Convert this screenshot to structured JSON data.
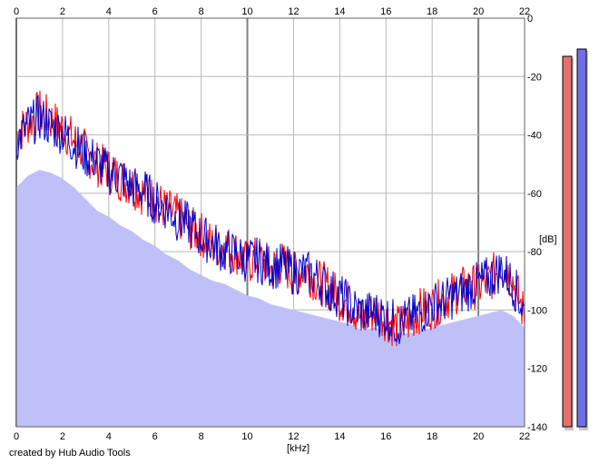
{
  "credit": "created by Hub Audio Tools",
  "meters": [
    {
      "name": "left channel level",
      "color": "#e86f6f"
    },
    {
      "name": "right channel level",
      "color": "#6f6fe8"
    }
  ],
  "chart_data": {
    "type": "line",
    "title": "",
    "xlabel": "[kHz]",
    "ylabel": "[dB]",
    "xlim": [
      0,
      22
    ],
    "ylim": [
      -140,
      0
    ],
    "x_ticks": [
      0,
      2,
      4,
      6,
      8,
      10,
      12,
      14,
      16,
      18,
      20,
      22
    ],
    "y_ticks": [
      0,
      -20,
      -40,
      -60,
      -80,
      -100,
      -120,
      -140
    ],
    "y_tick_labels": [
      "0",
      "-20",
      "-40",
      "-60",
      "-80",
      "-100",
      "-120",
      "-140"
    ],
    "grid": true,
    "legend": "none",
    "x": [
      0,
      0.5,
      1,
      1.5,
      2,
      2.5,
      3,
      3.5,
      4,
      4.5,
      5,
      5.5,
      6,
      6.5,
      7,
      7.5,
      8,
      8.5,
      9,
      9.5,
      10,
      10.5,
      11,
      11.5,
      12,
      12.5,
      13,
      13.5,
      14,
      14.5,
      15,
      15.5,
      16,
      16.5,
      17,
      17.5,
      18,
      18.5,
      19,
      19.5,
      20,
      20.5,
      21,
      21.5,
      22
    ],
    "series": [
      {
        "color": "#ff0000",
        "values": [
          -40,
          -36,
          -32,
          -35,
          -38,
          -42,
          -46,
          -50,
          -52,
          -55,
          -57,
          -60,
          -62,
          -66,
          -68,
          -72,
          -74,
          -78,
          -78,
          -80,
          -84,
          -82,
          -86,
          -84,
          -88,
          -86,
          -90,
          -92,
          -96,
          -98,
          -104,
          -100,
          -103,
          -106,
          -104,
          -100,
          -99,
          -96,
          -94,
          -92,
          -92,
          -90,
          -84,
          -90,
          -102
        ]
      },
      {
        "color": "#0000cc",
        "values": [
          -42,
          -37,
          -34,
          -37,
          -39,
          -43,
          -47,
          -49,
          -53,
          -54,
          -58,
          -59,
          -63,
          -65,
          -69,
          -71,
          -75,
          -77,
          -80,
          -81,
          -83,
          -83,
          -85,
          -85,
          -87,
          -87,
          -89,
          -93,
          -95,
          -99,
          -101,
          -101,
          -102,
          -105,
          -103,
          -101,
          -98,
          -97,
          -95,
          -93,
          -91,
          -89,
          -86,
          -91,
          -101
        ]
      },
      {
        "color": "#c0c0f8",
        "fill": true,
        "values": [
          -58,
          -54,
          -52,
          -53,
          -55,
          -58,
          -62,
          -66,
          -68,
          -71,
          -73,
          -76,
          -78,
          -81,
          -83,
          -86,
          -88,
          -90,
          -91,
          -93,
          -95,
          -96,
          -98,
          -99,
          -100,
          -101,
          -102,
          -103,
          -104,
          -105,
          -107,
          -106,
          -107,
          -108,
          -108,
          -107,
          -106,
          -105,
          -104,
          -103,
          -102,
          -101,
          -100,
          -102,
          -106
        ]
      }
    ]
  }
}
